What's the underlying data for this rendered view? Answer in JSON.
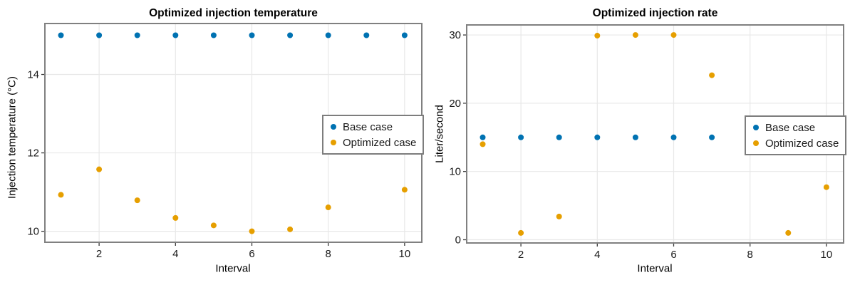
{
  "figure": {
    "background": "#FFFFFF",
    "frame_color": "#808080",
    "grid_color": "#E8E8E8",
    "tick_color": "#3a3a3a"
  },
  "chart_data": [
    {
      "type": "scatter",
      "title": "Optimized injection temperature",
      "xlabel": "Interval",
      "ylabel": "Injection temperature (°C)",
      "xlim": [
        0.58,
        10.45
      ],
      "ylim": [
        9.72,
        15.3
      ],
      "x_ticks": [
        2,
        4,
        6,
        8,
        10
      ],
      "y_ticks": [
        10,
        12,
        14
      ],
      "grid": true,
      "legend_position": "right-center",
      "x": [
        1,
        2,
        3,
        4,
        5,
        6,
        7,
        8,
        9,
        10
      ],
      "series": [
        {
          "name": "Base case",
          "color": "#0072B2",
          "values": [
            15,
            15,
            15,
            15,
            15,
            15,
            15,
            15,
            15,
            15
          ]
        },
        {
          "name": "Optimized case",
          "color": "#E69F00",
          "values": [
            10.93,
            11.58,
            10.79,
            10.34,
            10.15,
            10.0,
            10.05,
            10.61,
            null,
            11.06
          ]
        }
      ],
      "notes": "Optimized-case marker at interval 9 is occluded by the legend box"
    },
    {
      "type": "scatter",
      "title": "Optimized injection rate",
      "xlabel": "Interval",
      "ylabel": "Liter/second",
      "xlim": [
        0.58,
        10.45
      ],
      "ylim": [
        -0.47,
        31.47
      ],
      "x_ticks": [
        2,
        4,
        6,
        8,
        10
      ],
      "y_ticks": [
        0,
        10,
        20,
        30
      ],
      "grid": true,
      "legend_position": "right-center",
      "x": [
        1,
        2,
        3,
        4,
        5,
        6,
        7,
        8,
        9,
        10
      ],
      "series": [
        {
          "name": "Base case",
          "color": "#0072B2",
          "values": [
            15,
            15,
            15,
            15,
            15,
            15,
            15,
            15,
            15,
            15
          ]
        },
        {
          "name": "Optimized case",
          "color": "#E69F00",
          "values": [
            14.0,
            1.0,
            3.4,
            29.9,
            30.0,
            30.0,
            24.1,
            null,
            1.0,
            7.7
          ]
        }
      ],
      "notes": "Optimized-case marker at interval 8 and base-case markers at intervals 8-10 lie beneath the legend box"
    }
  ]
}
